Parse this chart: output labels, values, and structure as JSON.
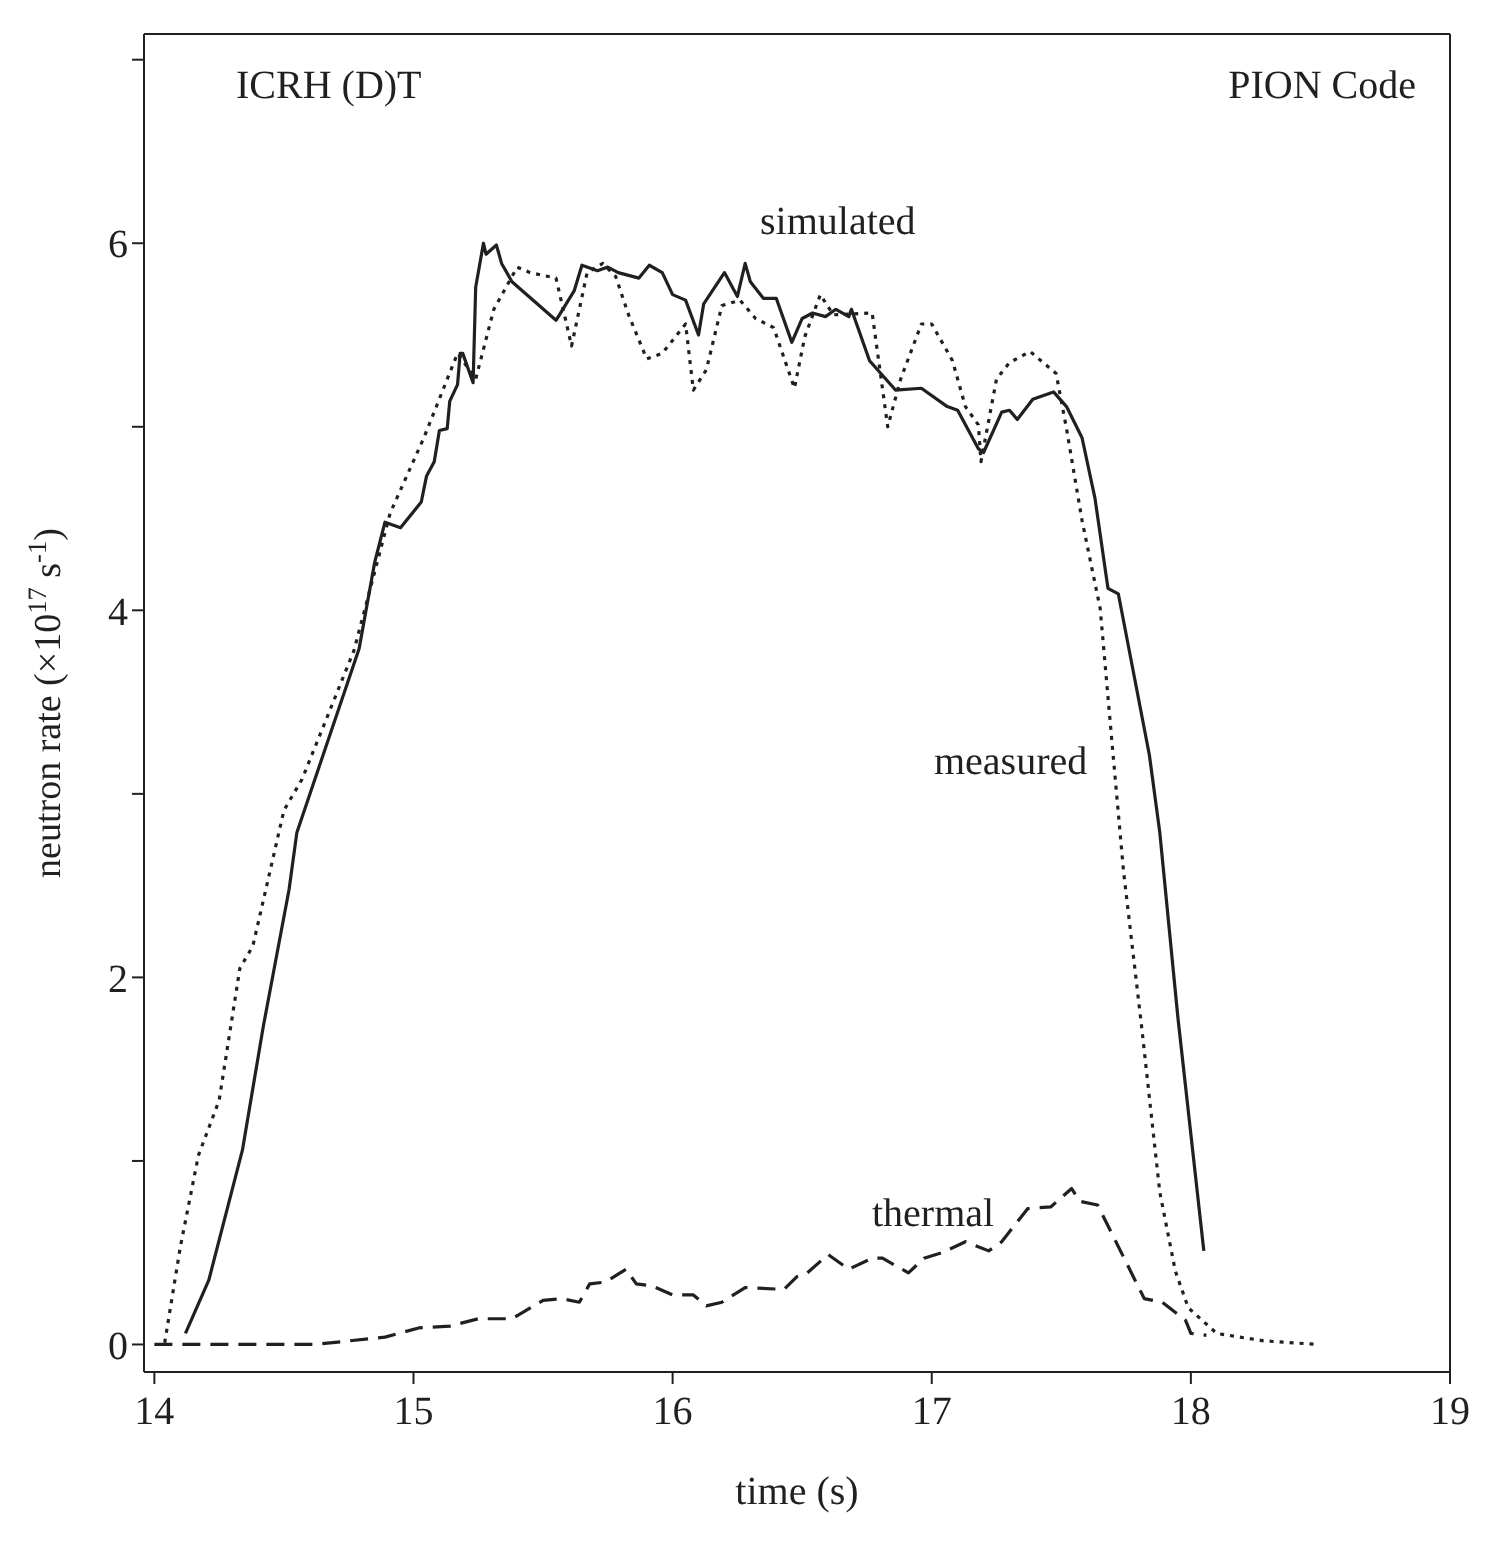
{
  "chart_data": {
    "type": "line",
    "xlabel": "time (s)",
    "ylabel": "neutron rate (×10$^{17}$ s$^{-1}$)",
    "xlim": [
      13.96,
      19
    ],
    "xticks": [
      14,
      15,
      16,
      17,
      18,
      19
    ],
    "ylim": [
      -0.15,
      7.14
    ],
    "yticks": [
      0,
      {
        "value": 1,
        "label": null
      },
      2,
      {
        "value": 3,
        "label": null
      },
      4,
      {
        "value": 5,
        "label": null
      },
      6,
      {
        "value": 7,
        "label": null
      }
    ],
    "legend": false,
    "marker": "none",
    "annotations": [
      "ICRH (D)T",
      "PION Code"
    ],
    "series": [
      {
        "name": "simulated",
        "color": "#231f20",
        "line_style": "solid",
        "x": [
          14.12,
          14.21,
          14.34,
          14.42,
          14.52,
          14.55,
          14.79,
          14.85,
          14.89,
          14.95,
          15.03,
          15.05,
          15.08,
          15.1,
          15.13,
          15.14,
          15.17,
          15.18,
          15.19,
          15.23,
          15.24,
          15.27,
          15.28,
          15.32,
          15.34,
          15.38,
          15.55,
          15.62,
          15.65,
          15.71,
          15.75,
          15.79,
          15.87,
          15.91,
          15.96,
          16.0,
          16.05,
          16.1,
          16.12,
          16.2,
          16.25,
          16.28,
          16.3,
          16.35,
          16.4,
          16.46,
          16.5,
          16.54,
          16.59,
          16.63,
          16.68,
          16.69,
          16.76,
          16.86,
          16.96,
          17.06,
          17.1,
          17.18,
          17.2,
          17.27,
          17.3,
          17.33,
          17.39,
          17.47,
          17.52,
          17.58,
          17.63,
          17.68,
          17.72,
          17.84,
          17.88,
          17.95,
          18.05
        ],
        "values": [
          0.06,
          0.35,
          1.06,
          1.73,
          2.48,
          2.79,
          3.79,
          4.26,
          4.48,
          4.45,
          4.59,
          4.73,
          4.81,
          4.98,
          4.99,
          5.14,
          5.23,
          5.4,
          5.4,
          5.24,
          5.76,
          6.0,
          5.94,
          5.99,
          5.89,
          5.79,
          5.58,
          5.74,
          5.88,
          5.85,
          5.87,
          5.84,
          5.81,
          5.88,
          5.84,
          5.72,
          5.69,
          5.5,
          5.67,
          5.84,
          5.71,
          5.89,
          5.79,
          5.7,
          5.7,
          5.46,
          5.59,
          5.62,
          5.6,
          5.64,
          5.6,
          5.64,
          5.36,
          5.2,
          5.21,
          5.11,
          5.09,
          4.88,
          4.86,
          5.08,
          5.09,
          5.04,
          5.15,
          5.19,
          5.11,
          4.94,
          4.61,
          4.12,
          4.09,
          3.21,
          2.79,
          1.78,
          0.51
        ]
      },
      {
        "name": "measured",
        "color": "#231f20",
        "line_style": "dotted",
        "x": [
          14.04,
          14.1,
          14.17,
          14.25,
          14.33,
          14.38,
          14.5,
          14.57,
          14.77,
          14.91,
          15.04,
          15.17,
          15.24,
          15.31,
          15.4,
          15.45,
          15.55,
          15.61,
          15.67,
          15.73,
          15.78,
          15.83,
          15.9,
          15.96,
          16.05,
          16.08,
          16.13,
          16.19,
          16.26,
          16.32,
          16.39,
          16.47,
          16.51,
          16.57,
          16.62,
          16.77,
          16.83,
          16.88,
          16.96,
          17.0,
          17.08,
          17.13,
          17.18,
          17.19,
          17.25,
          17.3,
          17.38,
          17.48,
          17.52,
          17.58,
          17.65,
          17.7,
          17.74,
          17.81,
          17.88,
          17.94,
          17.99,
          18.1,
          18.28,
          18.49
        ],
        "values": [
          0.01,
          0.53,
          1.03,
          1.33,
          2.05,
          2.17,
          2.91,
          3.08,
          3.78,
          4.53,
          4.94,
          5.4,
          5.26,
          5.64,
          5.87,
          5.84,
          5.81,
          5.44,
          5.84,
          5.89,
          5.82,
          5.61,
          5.37,
          5.4,
          5.56,
          5.2,
          5.31,
          5.66,
          5.69,
          5.59,
          5.54,
          5.21,
          5.49,
          5.72,
          5.61,
          5.62,
          5.0,
          5.26,
          5.56,
          5.56,
          5.36,
          5.11,
          5.01,
          4.81,
          5.26,
          5.35,
          5.41,
          5.29,
          4.99,
          4.49,
          4.01,
          3.21,
          2.58,
          1.73,
          0.83,
          0.4,
          0.2,
          0.06,
          0.02,
          0.0
        ]
      },
      {
        "name": "thermal",
        "color": "#231f20",
        "line_style": "dashed",
        "x": [
          14.0,
          14.62,
          14.89,
          15.02,
          15.14,
          15.25,
          15.38,
          15.5,
          15.57,
          15.64,
          15.68,
          15.74,
          15.82,
          15.86,
          15.92,
          16.0,
          16.08,
          16.13,
          16.19,
          16.28,
          16.43,
          16.48,
          16.52,
          16.6,
          16.68,
          16.77,
          16.81,
          16.91,
          16.97,
          17.04,
          17.13,
          17.22,
          17.27,
          17.37,
          17.46,
          17.54,
          17.57,
          17.64,
          17.82,
          17.89,
          17.98,
          18.0,
          18.06
        ],
        "values": [
          0.0,
          0.0,
          0.04,
          0.09,
          0.1,
          0.14,
          0.14,
          0.24,
          0.25,
          0.23,
          0.33,
          0.34,
          0.41,
          0.33,
          0.32,
          0.27,
          0.27,
          0.21,
          0.23,
          0.31,
          0.3,
          0.37,
          0.39,
          0.49,
          0.41,
          0.47,
          0.47,
          0.39,
          0.47,
          0.5,
          0.56,
          0.51,
          0.56,
          0.74,
          0.75,
          0.85,
          0.78,
          0.76,
          0.25,
          0.23,
          0.13,
          0.06,
          0.05
        ]
      }
    ]
  }
}
